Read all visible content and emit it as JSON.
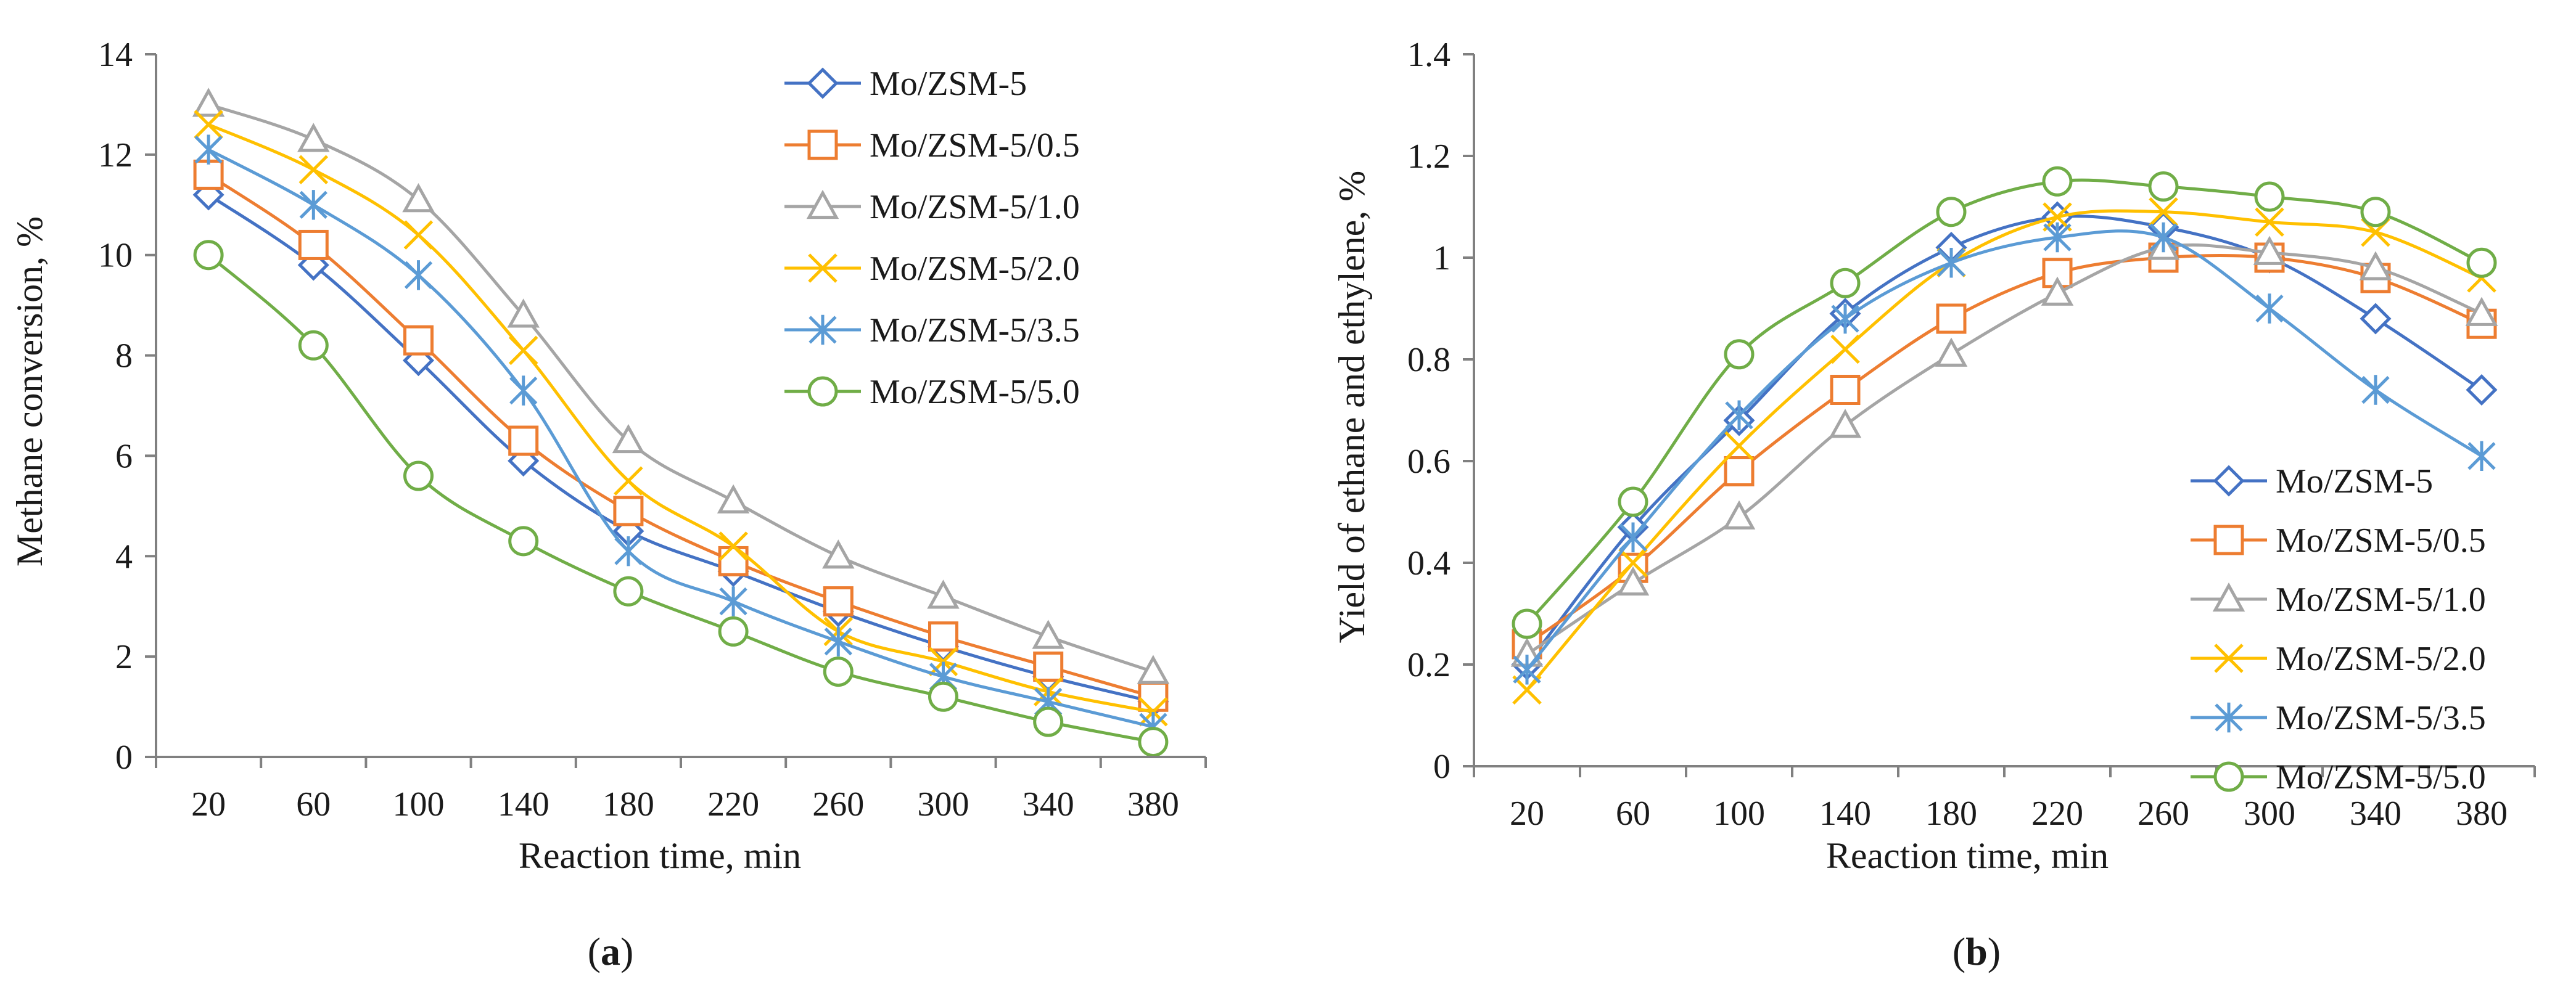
{
  "chart_data": [
    {
      "type": "line",
      "caption": "a",
      "xlabel": "Reaction time, min",
      "ylabel": "Methane conversion, %",
      "x": [
        20,
        60,
        100,
        140,
        180,
        220,
        260,
        300,
        340,
        380
      ],
      "x_tick_labels": [
        "20",
        "60",
        "100",
        "140",
        "180",
        "220",
        "260",
        "300",
        "340",
        "380"
      ],
      "ylim": [
        0,
        14
      ],
      "y_ticks": [
        0,
        2,
        4,
        6,
        8,
        10,
        12,
        14
      ],
      "y_tick_labels": [
        "0",
        "2",
        "4",
        "6",
        "8",
        "10",
        "12",
        "14"
      ],
      "legend_position": "top-right",
      "grid": false,
      "series": [
        {
          "name": "Mo/ZSM-5",
          "color": "#4472C4",
          "marker": "diamond",
          "values": [
            11.2,
            9.8,
            7.9,
            5.9,
            4.5,
            3.7,
            2.9,
            2.2,
            1.6,
            1.1
          ]
        },
        {
          "name": "Mo/ZSM-5/0.5",
          "color": "#ED7D31",
          "marker": "square",
          "values": [
            11.6,
            10.2,
            8.3,
            6.3,
            4.9,
            3.9,
            3.1,
            2.4,
            1.8,
            1.2
          ]
        },
        {
          "name": "Mo/ZSM-5/1.0",
          "color": "#A5A5A5",
          "marker": "triangle",
          "values": [
            13.0,
            12.3,
            11.1,
            8.8,
            6.3,
            5.1,
            4.0,
            3.2,
            2.4,
            1.7
          ]
        },
        {
          "name": "Mo/ZSM-5/2.0",
          "color": "#FFC000",
          "marker": "x",
          "values": [
            12.6,
            11.7,
            10.4,
            8.1,
            5.5,
            4.2,
            2.5,
            1.9,
            1.3,
            0.9
          ]
        },
        {
          "name": "Mo/ZSM-5/3.5",
          "color": "#5B9BD5",
          "marker": "star",
          "values": [
            12.1,
            11.0,
            9.6,
            7.3,
            4.1,
            3.1,
            2.3,
            1.6,
            1.1,
            0.6
          ]
        },
        {
          "name": "Mo/ZSM-5/5.0",
          "color": "#70AD47",
          "marker": "circle",
          "values": [
            10.0,
            8.2,
            5.6,
            4.3,
            3.3,
            2.5,
            1.7,
            1.2,
            0.7,
            0.3
          ]
        }
      ]
    },
    {
      "type": "line",
      "caption": "b",
      "xlabel": "Reaction time, min",
      "ylabel": "Yield of ethane and ethylene, %",
      "x": [
        20,
        60,
        100,
        140,
        180,
        220,
        260,
        300,
        340,
        380
      ],
      "x_tick_labels": [
        "20",
        "60",
        "100",
        "140",
        "180",
        "220",
        "260",
        "300",
        "340",
        "380"
      ],
      "ylim": [
        0,
        1.4
      ],
      "y_ticks": [
        0,
        0.2,
        0.4,
        0.6,
        0.8,
        1,
        1.2,
        1.4
      ],
      "y_tick_labels": [
        "0",
        "0.2",
        "0.4",
        "0.6",
        "0.8",
        "1",
        "1.2",
        "1.4"
      ],
      "legend_position": "bottom-right",
      "grid": false,
      "series": [
        {
          "name": "Mo/ZSM-5",
          "color": "#4472C4",
          "marker": "diamond",
          "values": [
            0.2,
            0.47,
            0.68,
            0.89,
            1.02,
            1.08,
            1.06,
            1.0,
            0.88,
            0.74
          ]
        },
        {
          "name": "Mo/ZSM-5/0.5",
          "color": "#ED7D31",
          "marker": "square",
          "values": [
            0.24,
            0.39,
            0.58,
            0.74,
            0.88,
            0.97,
            1.0,
            1.0,
            0.96,
            0.87
          ]
        },
        {
          "name": "Mo/ZSM-5/1.0",
          "color": "#A5A5A5",
          "marker": "triangle",
          "values": [
            0.22,
            0.36,
            0.49,
            0.67,
            0.81,
            0.93,
            1.02,
            1.01,
            0.98,
            0.89
          ]
        },
        {
          "name": "Mo/ZSM-5/2.0",
          "color": "#FFC000",
          "marker": "x",
          "values": [
            0.15,
            0.4,
            0.63,
            0.82,
            0.99,
            1.08,
            1.09,
            1.07,
            1.05,
            0.96
          ]
        },
        {
          "name": "Mo/ZSM-5/3.5",
          "color": "#5B9BD5",
          "marker": "star",
          "values": [
            0.19,
            0.45,
            0.69,
            0.88,
            0.99,
            1.04,
            1.04,
            0.9,
            0.74,
            0.61
          ]
        },
        {
          "name": "Mo/ZSM-5/5.0",
          "color": "#70AD47",
          "marker": "circle",
          "values": [
            0.28,
            0.52,
            0.81,
            0.95,
            1.09,
            1.15,
            1.14,
            1.12,
            1.09,
            0.99
          ]
        }
      ]
    }
  ]
}
